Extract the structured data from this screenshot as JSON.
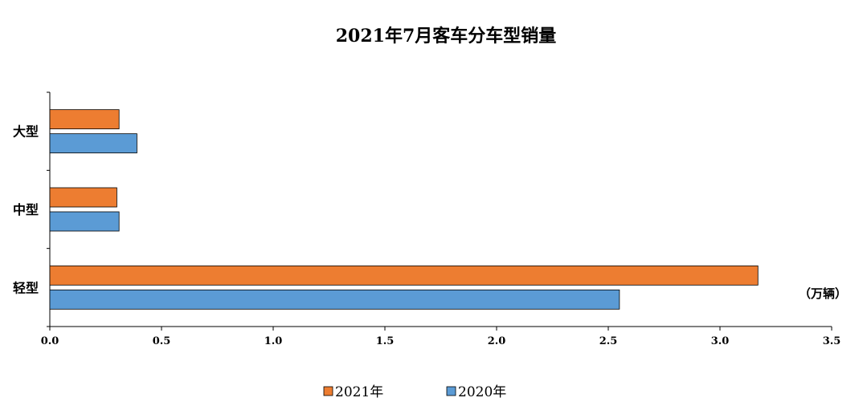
{
  "chart_data": {
    "type": "bar",
    "orientation": "horizontal",
    "title": "2021年7月客车分车型销量",
    "unit_label": "（万辆）",
    "categories": [
      "大型",
      "中型",
      "轻型"
    ],
    "series": [
      {
        "name": "2021年",
        "color": "#ED7D31",
        "values": [
          0.31,
          0.3,
          3.17
        ]
      },
      {
        "name": "2020年",
        "color": "#5B9BD5",
        "values": [
          0.39,
          0.31,
          2.55
        ]
      }
    ],
    "xlim": [
      0,
      3.5
    ],
    "x_ticks": [
      "0.0",
      "0.5",
      "1.0",
      "1.5",
      "2.0",
      "2.5",
      "3.0",
      "3.5"
    ],
    "grid": false,
    "legend_position": "bottom"
  }
}
